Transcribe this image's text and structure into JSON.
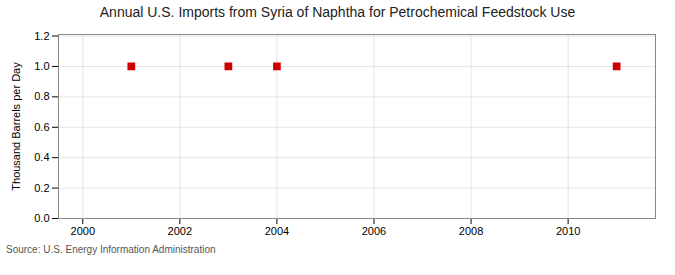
{
  "chart_data": {
    "type": "scatter",
    "title": "Annual U.S. Imports from Syria of Naphtha for Petrochemical Feedstock Use",
    "ylabel": "Thousand Barrels per Day",
    "annotations": [
      "Source: U.S. Energy Information Administration"
    ],
    "x": [
      2001,
      2003,
      2004,
      2011
    ],
    "values": [
      1.0,
      1.0,
      1.0,
      1.0
    ],
    "color": "#CC0000",
    "marker": "square",
    "xlim": [
      1999.5,
      2011.8
    ],
    "xticks": [
      2000,
      2002,
      2004,
      2006,
      2008,
      2010
    ],
    "ylim": [
      0.0,
      1.21
    ],
    "yticks": [
      {
        "value": 0.0,
        "label": "0.0"
      },
      0.2,
      0.4,
      0.6,
      0.8,
      {
        "value": 1.0,
        "label": "1.0"
      },
      1.2
    ],
    "grid": true
  }
}
